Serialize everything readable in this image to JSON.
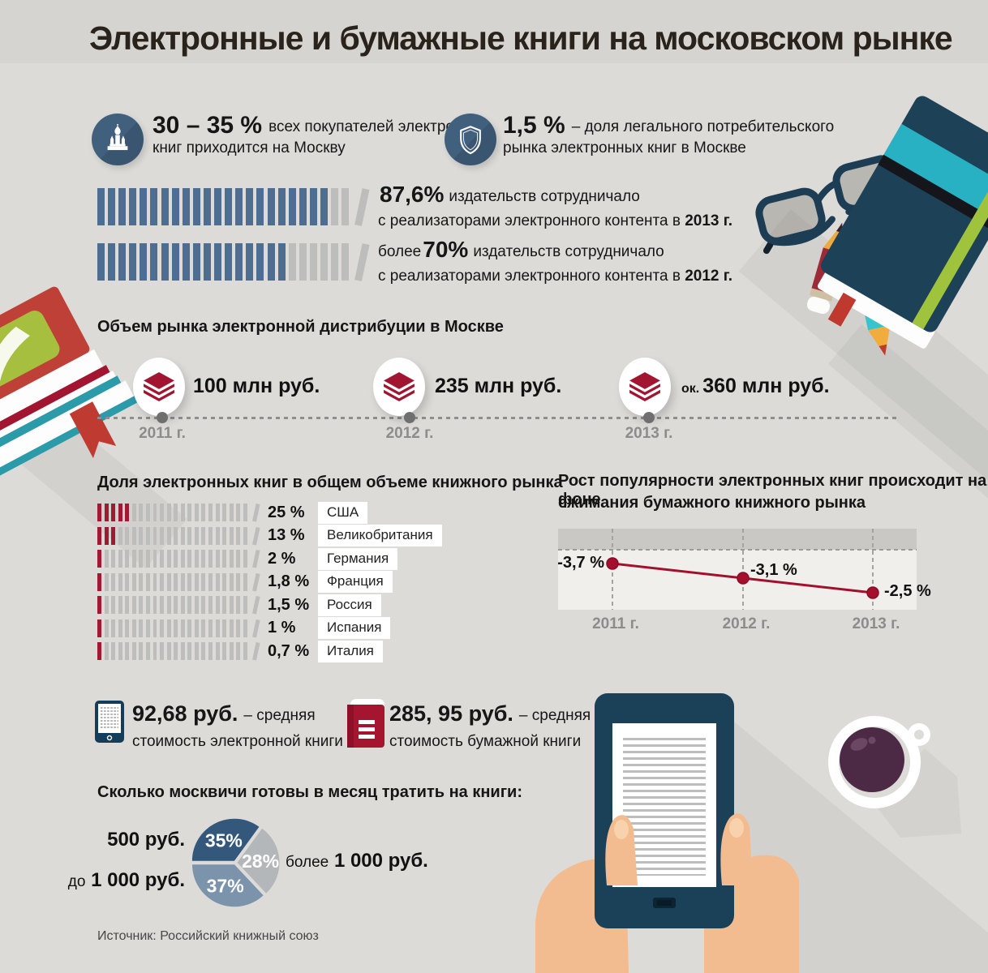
{
  "header": {
    "title": "Электронные и бумажные книги на московском рынке"
  },
  "key_stats": [
    {
      "icon": "kremlin-icon",
      "value": "30 – 35 %",
      "desc_line1": "всех покупателей электронных",
      "desc_line2": "книг приходится на Москву"
    },
    {
      "icon": "shield-icon",
      "value": "1,5 %",
      "desc_line1": "– доля легального потребительского",
      "desc_line2": "рынка электронных книг в Москве"
    }
  ],
  "publishers": {
    "rows": [
      {
        "lead": "",
        "value": "87,6%",
        "rest": "издательств сотрудничало",
        "line2": "с реализаторами электронного контента в ",
        "year": "2013 г.",
        "bars_filled": 22,
        "bars_total": 25
      },
      {
        "lead": "более",
        "value": "70%",
        "rest": "издательств сотрудничало",
        "line2": "с реализаторами электронного контента в ",
        "year": "2012 г.",
        "bars_filled": 18,
        "bars_total": 25
      }
    ]
  },
  "market_volume": {
    "title": "Объем рынка электронной дистрибуции в Москве",
    "milestones": [
      {
        "prefix": "",
        "value": "100 млн руб.",
        "year": "2011 г."
      },
      {
        "prefix": "",
        "value": "235 млн руб.",
        "year": "2012 г."
      },
      {
        "prefix": "ок.",
        "value": "360  млн руб.",
        "year": "2013 г."
      }
    ]
  },
  "ebook_share": {
    "title": "Доля электронных книг в общем объеме книжного рынка",
    "bars_total": 23,
    "rows": [
      {
        "country": "США",
        "percent": "25 %",
        "filled": 5
      },
      {
        "country": "Великобритания",
        "percent": "13 %",
        "filled": 3
      },
      {
        "country": "Германия",
        "percent": "2 %",
        "filled": 1
      },
      {
        "country": "Франция",
        "percent": "1,8 %",
        "filled": 1
      },
      {
        "country": "Россия",
        "percent": "1,5 %",
        "filled": 1
      },
      {
        "country": "Испания",
        "percent": "1 %",
        "filled": 1
      },
      {
        "country": "Италия",
        "percent": "0,7 %",
        "filled": 1
      }
    ]
  },
  "paper_market": {
    "title_line1": "Рост популярности электронных книг происходит на фоне",
    "title_line2": "сжимания бумажного книжного рынка",
    "points": [
      {
        "year": "2011 г.",
        "label": "-3,7 %",
        "value": -3.7
      },
      {
        "year": "2012 г.",
        "label": "-3,1 %",
        "value": -3.1
      },
      {
        "year": "2013 г.",
        "label": "-2,5 %",
        "value": -2.5
      }
    ]
  },
  "avg_prices": [
    {
      "icon": "ereader-icon",
      "value": "92,68 руб.",
      "tail": "– средняя",
      "line2": "стоимость электронной книги"
    },
    {
      "icon": "paper-book-icon",
      "value": "285, 95 руб.",
      "tail": "– средняя",
      "line2": "стоимость бумажной книги"
    }
  ],
  "spending": {
    "title": "Сколько москвичи готовы в месяц тратить на книги:",
    "slices": [
      {
        "lead": "",
        "label": "500 руб.",
        "pct": 35,
        "pct_label": "35%",
        "color": "#33587c"
      },
      {
        "lead": "более",
        "label": "1 000 руб.",
        "pct": 28,
        "pct_label": "28%",
        "color": "#b4b7ba"
      },
      {
        "lead": "до",
        "label": "1 000 руб.",
        "pct": 37,
        "pct_label": "37%",
        "color": "#7b93ab"
      }
    ]
  },
  "source": "Источник: Российский книжный союз",
  "colors": {
    "background": "#dcdbd8",
    "header_bg": "#d6d4d1",
    "steel_blue": "#4d6e91",
    "bar_gray": "#bdbdbc",
    "crimson": "#9e1b33",
    "circle_blue": "#3e5a74",
    "line_red": "#a50f2e",
    "year_gray": "#8c8c8c",
    "navy": "#1a4158",
    "pie_dark_blue": "#33587c",
    "pie_gray": "#b4b7ba",
    "pie_mid_blue": "#7b93ab"
  },
  "chart_data": [
    {
      "type": "bar",
      "categories": [
        "2013 г.",
        "2012 г."
      ],
      "values": [
        87.6,
        70
      ],
      "unit": "%",
      "annotations": [
        "87,6% издательств сотрудничало с реализаторами электронного контента в 2013 г.",
        "более 70% издательств сотрудничало с реализаторами электронного контента в 2012 г."
      ]
    },
    {
      "type": "line",
      "title": "Объем рынка электронной дистрибуции в Москве",
      "x": [
        "2011 г.",
        "2012 г.",
        "2013 г."
      ],
      "values": [
        100,
        235,
        360
      ],
      "unit": "млн руб.",
      "value_labels": [
        "100 млн руб.",
        "235 млн руб.",
        "ок. 360 млн руб."
      ],
      "layout": "timeline"
    },
    {
      "type": "bar",
      "title": "Доля электронных книг в общем объеме книжного рынка",
      "categories": [
        "США",
        "Великобритания",
        "Германия",
        "Франция",
        "Россия",
        "Испания",
        "Италия"
      ],
      "values": [
        25,
        13,
        2,
        1.8,
        1.5,
        1,
        0.7
      ],
      "unit": "%"
    },
    {
      "type": "line",
      "title": "Рост популярности электронных книг происходит на фоне сжимания бумажного книжного рынка",
      "x": [
        "2011 г.",
        "2012 г.",
        "2013 г."
      ],
      "values": [
        -3.7,
        -3.1,
        -2.5
      ],
      "unit": "%",
      "value_labels": [
        "-3,7 %",
        "-3,1 %",
        "-2,5 %"
      ],
      "legend": "none",
      "grid": "dashed-vertical"
    },
    {
      "type": "pie",
      "title": "Сколько москвичи готовы в месяц тратить на книги:",
      "labels": [
        "500 руб.",
        "более 1 000 руб.",
        "до 1 000 руб."
      ],
      "values": [
        35,
        28,
        37
      ],
      "unit": "%"
    }
  ]
}
